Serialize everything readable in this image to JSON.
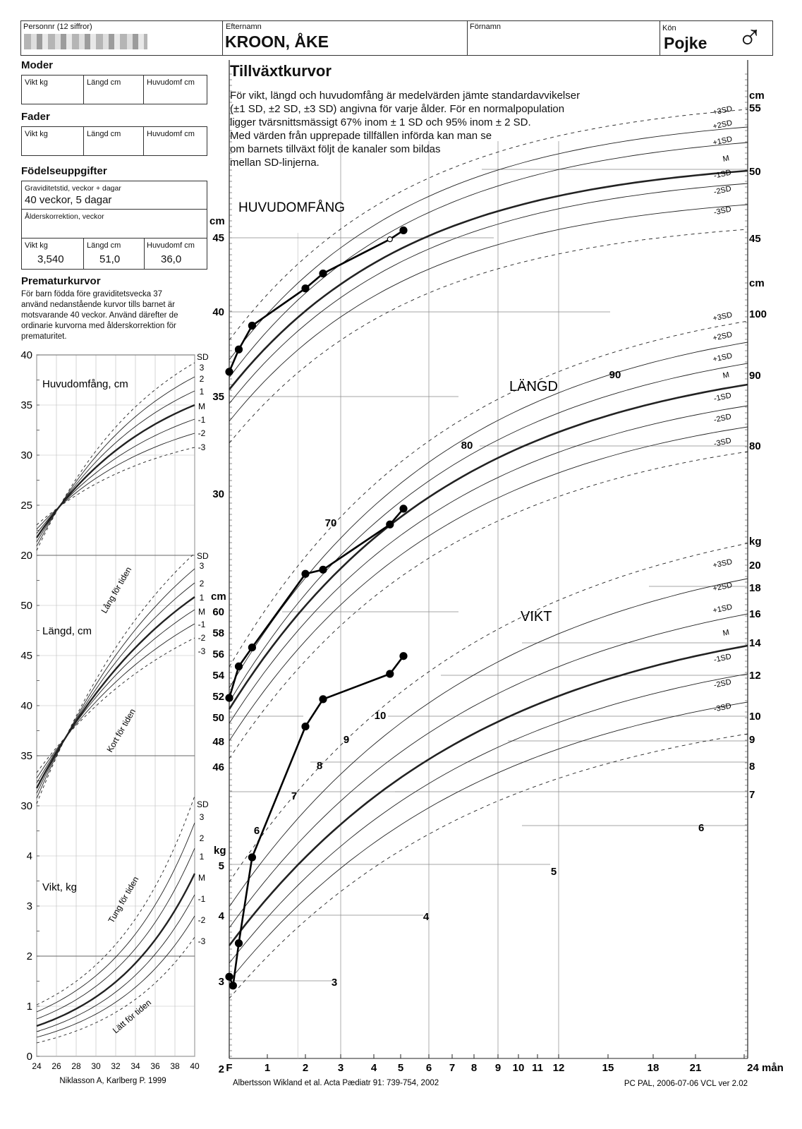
{
  "header": {
    "personnr_label": "Personnr (12 siffror)",
    "efternamn_label": "Efternamn",
    "efternamn_value": "KROON, ÅKE",
    "fornamn_label": "Förnamn",
    "kon_label": "Kön",
    "kon_value": "Pojke",
    "kon_symbol": "♂"
  },
  "parents": {
    "moder_title": "Moder",
    "fader_title": "Fader",
    "vikt_label": "Vikt kg",
    "langd_label": "Längd cm",
    "huvud_label": "Huvudomf cm"
  },
  "birth": {
    "title": "Födelseuppgifter",
    "gest_label": "Graviditetstid, veckor + dagar",
    "gest_value": "40 veckor, 5 dagar",
    "corr_label": "Ålderskorrektion, veckor",
    "vikt_label": "Vikt kg",
    "vikt_value": "3,540",
    "langd_label": "Längd cm",
    "langd_value": "51,0",
    "huvud_label": "Huvudomf cm",
    "huvud_value": "36,0"
  },
  "premature": {
    "title": "Prematurkurvor",
    "text": "För barn födda före graviditetsvecka 37 använd nedanstående kurvor tills barnet är motsvarande 40 veckor. Använd därefter de ordinarie kurvorna med ålderskorrektion för prematuritet.",
    "huvud_label": "Huvudomfång, cm",
    "langd_label": "Längd, cm",
    "vikt_label": "Vikt, kg",
    "lang_for_tiden": "Lång för tiden",
    "kort_for_tiden": "Kort för tiden",
    "tung_for_tiden": "Tung för tiden",
    "latt_for_tiden": "Lätt för tiden",
    "sd_header": "SD",
    "sd_labels": [
      "3",
      "2",
      "1",
      "M",
      "-1",
      "-2",
      "-3"
    ],
    "y_ticks": [
      [
        "40",
        "0"
      ],
      [
        "35",
        "1"
      ],
      [
        "30",
        "2"
      ],
      [
        "25",
        "3"
      ],
      [
        "20",
        "4"
      ],
      [
        "50",
        "5"
      ],
      [
        "45",
        "6"
      ],
      [
        "40",
        "7"
      ],
      [
        "35",
        "8"
      ],
      [
        "30",
        "9"
      ],
      [
        "4",
        "10"
      ],
      [
        "3",
        "11"
      ],
      [
        "2",
        "12"
      ],
      [
        "1",
        "13"
      ],
      [
        "0",
        "14"
      ]
    ],
    "x_ticks": [
      "24",
      "26",
      "28",
      "30",
      "32",
      "34",
      "36",
      "38",
      "40"
    ],
    "citation": "Niklasson A, Karlberg P. 1999"
  },
  "main": {
    "title": "Tillväxtkurvor",
    "intro": [
      "För vikt, längd och huvudomfång är medelvärden jämte standardavvikelser",
      "(±1 SD, ±2 SD, ±3 SD) angivna för varje ålder. För en normalpopulation",
      "ligger tvärsnittsmässigt 67% inom ± 1 SD och 95% inom ± 2 SD.",
      "Med värden från upprepade tillfällen införda kan man se",
      "om barnets tillväxt följt de kanaler som bildas",
      "mellan SD-linjerna."
    ],
    "huvud_title": "HUVUDOMFÅNG",
    "langd_title": "LÄNGD",
    "vikt_title": "VIKT",
    "unit_cm": "cm",
    "unit_kg": "kg",
    "sd_labels": [
      "+3SD",
      "+2SD",
      "+1SD",
      "M",
      "-1SD",
      "-2SD",
      "-3SD"
    ],
    "x_labels": [
      "F",
      "1",
      "2",
      "3",
      "4",
      "5",
      "6",
      "7",
      "8",
      "9",
      "10",
      "11",
      "12",
      "15",
      "18",
      "21",
      "24 mån"
    ],
    "citation": "Albertsson Wikland et al.  Acta Pædiatr 91: 739-754, 2002",
    "footer_right": "PC PAL, 2006-07-06 VCL ver 2.02",
    "left_axis_hc": [
      "45",
      "40",
      "35",
      "30"
    ],
    "left_axis_len": [
      "60",
      "58",
      "56",
      "54",
      "52",
      "50",
      "48",
      "46"
    ],
    "left_axis_wt": [
      "5",
      "4",
      "3",
      "2"
    ],
    "right_axis_hc": [
      "55",
      "50",
      "45"
    ],
    "right_axis_len": [
      "100",
      "90",
      "80"
    ],
    "right_axis_wt": [
      "20",
      "18",
      "16",
      "14",
      "12",
      "10",
      "9",
      "8",
      "7",
      "6"
    ],
    "inner_len_labels": [
      "90",
      "80",
      "70"
    ],
    "inner_wt_labels": [
      "10",
      "9",
      "8",
      "7",
      "6",
      "5",
      "4",
      "3"
    ]
  },
  "chart_data": {
    "type": "line",
    "title": "Tillväxtkurvor",
    "x_unit": "månader",
    "series": [
      {
        "name": "HUVUDOMFÅNG",
        "unit": "cm",
        "x": [
          0,
          0.25,
          0.6,
          2.0,
          2.5,
          4.6,
          5.1
        ],
        "y": [
          36.0,
          37.5,
          39.1,
          41.6,
          42.6,
          44.9,
          45.5
        ]
      },
      {
        "name": "LÄNGD",
        "unit": "cm",
        "x": [
          0,
          0.25,
          0.6,
          2.0,
          2.5,
          4.6,
          5.1
        ],
        "y": [
          51.0,
          54.0,
          55.8,
          62.8,
          63.2,
          67.5,
          69.0
        ]
      },
      {
        "name": "VIKT",
        "unit": "kg",
        "x": [
          0,
          0.1,
          0.25,
          0.6,
          2.0,
          2.5,
          4.6,
          5.1
        ],
        "y": [
          3.54,
          3.45,
          3.9,
          5.0,
          7.3,
          7.9,
          8.5,
          8.95
        ]
      }
    ]
  }
}
